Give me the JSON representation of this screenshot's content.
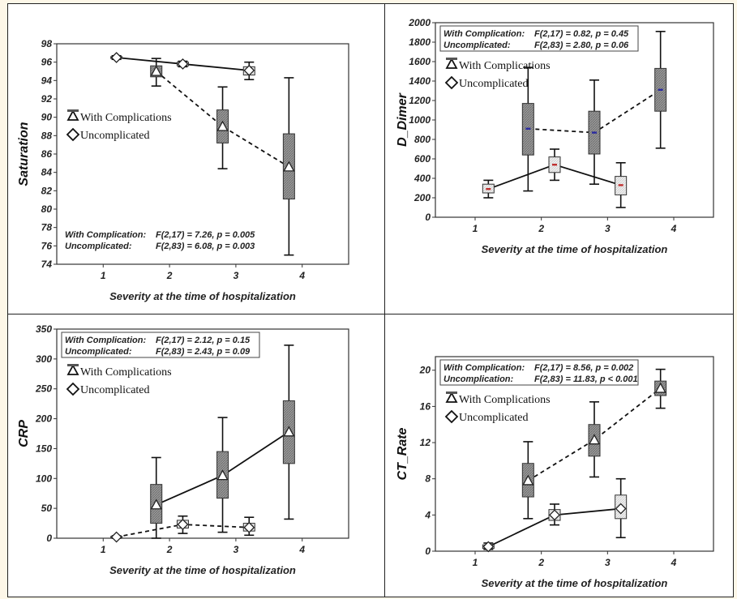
{
  "chart_data": [
    {
      "type": "box",
      "ylabel": "Saturation",
      "xlabel": "Severity at the time of hospitalization",
      "xticks": [
        1,
        2,
        3,
        4
      ],
      "xlim": [
        0.3,
        4.7
      ],
      "ylim": [
        74,
        98
      ],
      "yticks": [
        74,
        76,
        78,
        80,
        82,
        84,
        86,
        88,
        90,
        92,
        94,
        96,
        98
      ],
      "legend": [
        "With Complications",
        "Uncomplicated"
      ],
      "stats": [
        {
          "label": "With Complication:",
          "value": "F(2,17) = 7.26, p = 0.005"
        },
        {
          "label": "Uncomplicated:",
          "value": "F(2,83) = 6.08, p = 0.003"
        }
      ],
      "stats_position": "bottom",
      "stats_box": false,
      "series": [
        {
          "name": "With Complications",
          "line": "dashed",
          "marker": "triangle",
          "points": [
            {
              "x": 1.8,
              "mean": 95.0,
              "q1": 94.4,
              "q3": 95.6,
              "min": 93.4,
              "max": 96.4
            },
            {
              "x": 2.8,
              "mean": 89.0,
              "q1": 87.2,
              "q3": 90.8,
              "min": 84.4,
              "max": 93.3
            },
            {
              "x": 3.8,
              "mean": 84.6,
              "q1": 81.1,
              "q3": 88.2,
              "min": 75.0,
              "max": 94.3
            }
          ]
        },
        {
          "name": "Uncomplicated",
          "line": "solid",
          "marker": "diamond",
          "points": [
            {
              "x": 1.2,
              "mean": 96.5,
              "q1": 96.4,
              "q3": 96.6,
              "min": 96.3,
              "max": 96.7
            },
            {
              "x": 2.2,
              "mean": 95.8,
              "q1": 95.6,
              "q3": 96.0,
              "min": 95.5,
              "max": 96.1
            },
            {
              "x": 3.2,
              "mean": 95.1,
              "q1": 94.6,
              "q3": 95.5,
              "min": 94.1,
              "max": 96.0
            }
          ]
        }
      ]
    },
    {
      "type": "box",
      "ylabel": "D_Dimer",
      "xlabel": "Severity at the time of hospitalization",
      "xticks": [
        1,
        2,
        3,
        4
      ],
      "xlim": [
        0.4,
        4.6
      ],
      "ylim": [
        0,
        2000
      ],
      "yticks": [
        0,
        200,
        400,
        600,
        800,
        1000,
        1200,
        1400,
        1600,
        1800,
        2000
      ],
      "legend": [
        "With Complications",
        "Uncomplicated"
      ],
      "stats": [
        {
          "label": "With Complication:",
          "value": "F(2,17) = 0.82, p = 0.45"
        },
        {
          "label": "Uncomplicated:",
          "value": "F(2,83) = 2.80, p = 0.06"
        }
      ],
      "stats_position": "top",
      "stats_box": true,
      "series": [
        {
          "name": "With Complications",
          "line": "dashed",
          "marker": "dash",
          "points": [
            {
              "x": 1.8,
              "mean": 910,
              "q1": 640,
              "q3": 1170,
              "min": 270,
              "max": 1540
            },
            {
              "x": 2.8,
              "mean": 870,
              "q1": 650,
              "q3": 1090,
              "min": 340,
              "max": 1410
            },
            {
              "x": 3.8,
              "mean": 1310,
              "q1": 1090,
              "q3": 1530,
              "min": 710,
              "max": 1910
            }
          ]
        },
        {
          "name": "Uncomplicated",
          "line": "solid",
          "marker": "dash",
          "points": [
            {
              "x": 1.2,
              "mean": 290,
              "q1": 250,
              "q3": 340,
              "min": 200,
              "max": 380
            },
            {
              "x": 2.2,
              "mean": 540,
              "q1": 460,
              "q3": 620,
              "min": 380,
              "max": 700
            },
            {
              "x": 3.2,
              "mean": 330,
              "q1": 230,
              "q3": 420,
              "min": 100,
              "max": 560
            }
          ]
        }
      ]
    },
    {
      "type": "box",
      "ylabel": "CRP",
      "xlabel": "Severity at the time of hospitalization",
      "xticks": [
        1,
        2,
        3,
        4
      ],
      "xlim": [
        0.3,
        4.7
      ],
      "ylim": [
        0,
        350
      ],
      "yticks": [
        0,
        50,
        100,
        150,
        200,
        250,
        300,
        350
      ],
      "legend": [
        "With Complications",
        "Uncomplicated"
      ],
      "stats": [
        {
          "label": "With Complication:",
          "value": "F(2,17) = 2.12, p = 0.15"
        },
        {
          "label": "Uncomplicated:",
          "value": "F(2,83) = 2.43, p = 0.09"
        }
      ],
      "stats_position": "top",
      "stats_box": true,
      "series": [
        {
          "name": "With Complications",
          "line": "solid",
          "marker": "triangle",
          "points": [
            {
              "x": 1.8,
              "mean": 56,
              "q1": 25,
              "q3": 90,
              "min": 0,
              "max": 135
            },
            {
              "x": 2.8,
              "mean": 105,
              "q1": 67,
              "q3": 145,
              "min": 10,
              "max": 202
            },
            {
              "x": 3.8,
              "mean": 178,
              "q1": 125,
              "q3": 230,
              "min": 32,
              "max": 323
            }
          ]
        },
        {
          "name": "Uncomplicated",
          "line": "dashed",
          "marker": "diamond",
          "points": [
            {
              "x": 1.2,
              "mean": 2,
              "q1": 1,
              "q3": 3,
              "min": 0,
              "max": 4
            },
            {
              "x": 2.2,
              "mean": 23,
              "q1": 17,
              "q3": 30,
              "min": 8,
              "max": 37
            },
            {
              "x": 3.2,
              "mean": 18,
              "q1": 12,
              "q3": 25,
              "min": 5,
              "max": 35
            }
          ]
        }
      ]
    },
    {
      "type": "box",
      "ylabel": "CT_Rate",
      "xlabel": "Severity at the time of hospitalization",
      "xticks": [
        1,
        2,
        3,
        4
      ],
      "xlim": [
        0.4,
        4.6
      ],
      "ylim": [
        0,
        21.5
      ],
      "yticks": [
        0,
        4,
        8,
        12,
        16,
        20
      ],
      "legend": [
        "With Complications",
        "Uncomplicated"
      ],
      "stats": [
        {
          "label": "With Complication:",
          "value": "F(2,17) = 8.56, p = 0.002"
        },
        {
          "label": "Uncomplication:",
          "value": "F(2,83) = 11.83, p < 0.001"
        }
      ],
      "stats_position": "top",
      "stats_box": true,
      "series": [
        {
          "name": "With Complications",
          "line": "dashed",
          "marker": "triangle",
          "points": [
            {
              "x": 1.8,
              "mean": 7.8,
              "q1": 6.0,
              "q3": 9.7,
              "min": 3.6,
              "max": 12.1
            },
            {
              "x": 2.8,
              "mean": 12.3,
              "q1": 10.5,
              "q3": 14.0,
              "min": 8.2,
              "max": 16.5
            },
            {
              "x": 3.8,
              "mean": 18.0,
              "q1": 17.2,
              "q3": 18.8,
              "min": 15.8,
              "max": 20.1
            }
          ]
        },
        {
          "name": "Uncomplicated",
          "line": "solid",
          "marker": "diamond",
          "points": [
            {
              "x": 1.2,
              "mean": 0.5,
              "q1": 0.3,
              "q3": 0.7,
              "min": 0.2,
              "max": 0.9
            },
            {
              "x": 2.2,
              "mean": 4.0,
              "q1": 3.4,
              "q3": 4.6,
              "min": 2.9,
              "max": 5.2
            },
            {
              "x": 3.2,
              "mean": 4.7,
              "q1": 3.6,
              "q3": 6.2,
              "min": 1.5,
              "max": 8.0
            }
          ]
        }
      ]
    }
  ]
}
